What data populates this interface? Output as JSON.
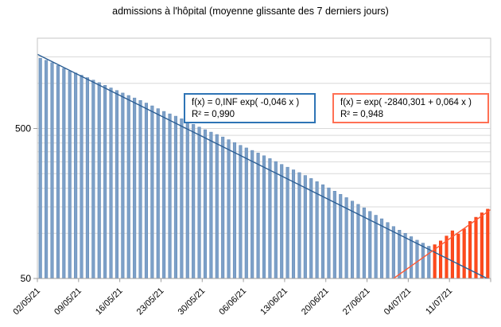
{
  "title": "admissions à l'hôpital (moyenne glissante des 7 derniers jours)",
  "annotations": {
    "blue_fit": {
      "line1": "f(x) = 0,INF exp( -0,046 x )",
      "line2": "R² = 0,990",
      "border_color": "#2e74b5"
    },
    "red_fit": {
      "line1": "f(x) = exp( -2840,301 + 0,064 x )",
      "line2": "R² = 0,948",
      "border_color": "#ff7054"
    }
  },
  "chart_data": {
    "type": "bar",
    "title": "admissions à l'hôpital (moyenne glissante des 7 derniers jours)",
    "xlabel": "",
    "ylabel": "",
    "y_axis": {
      "scale": "log",
      "min": 50,
      "max": 2000,
      "tick_values": [
        500,
        50
      ],
      "tick_labels": [
        "500",
        "50"
      ],
      "gridline_values": [
        100,
        150,
        200,
        250,
        300,
        350,
        400,
        450,
        500,
        1000,
        1500
      ]
    },
    "x_axis": {
      "start_date": "02/05/21",
      "interval_days": 7,
      "total_days": 77,
      "tick_labels": [
        "02/05/21",
        "09/05/21",
        "16/05/21",
        "23/05/21",
        "30/05/21",
        "06/06/21",
        "13/06/21",
        "20/06/21",
        "27/06/21",
        "04/07/21",
        "11/07/21"
      ]
    },
    "legend": "none",
    "grid": "on",
    "series": [
      {
        "name": "blue-declining",
        "color": "#7da0c8",
        "edge_color": "#5d86b3",
        "start_day": 0,
        "first_date": "02/05/21",
        "last_date": "07/07/21",
        "values": [
          1470,
          1425,
          1372,
          1315,
          1258,
          1210,
          1172,
          1133,
          1092,
          1051,
          1011,
          970,
          932,
          896,
          862,
          830,
          799,
          769,
          739,
          708,
          678,
          650,
          626,
          604,
          581,
          557,
          533,
          511,
          491,
          473,
          456,
          439,
          421,
          403,
          386,
          371,
          357,
          343,
          329,
          315,
          301,
          288,
          276,
          265,
          254,
          243,
          232,
          221,
          211,
          201,
          191,
          182,
          173,
          164,
          156,
          148,
          140,
          132,
          125,
          118,
          111,
          105,
          100,
          95,
          90,
          86,
          82
        ]
      },
      {
        "name": "red-rising",
        "color": "#ff4a1c",
        "edge_color": "#e8380b",
        "start_day": 67,
        "first_date": "08/07/21",
        "last_date": "17/07/21",
        "values": [
          84,
          89,
          96,
          104,
          99,
          107,
          120,
          128,
          137,
          145
        ]
      }
    ],
    "trendlines": [
      {
        "name": "blue-exponential-fit",
        "color": "#2a5d93",
        "equation": "f(x) = 0,INF exp( -0,046 x )",
        "r2": "0,990",
        "points": [
          {
            "day": -0.5,
            "value": 1560
          },
          {
            "day": 75.9,
            "value": 50
          }
        ]
      },
      {
        "name": "red-exponential-fit",
        "color": "#ff5a36",
        "equation": "f(x) = exp( -2840,301 + 0,064 x )",
        "r2": "0,948",
        "points": [
          {
            "day": 60,
            "value": 50
          },
          {
            "day": 76.5,
            "value": 144
          }
        ]
      }
    ]
  }
}
